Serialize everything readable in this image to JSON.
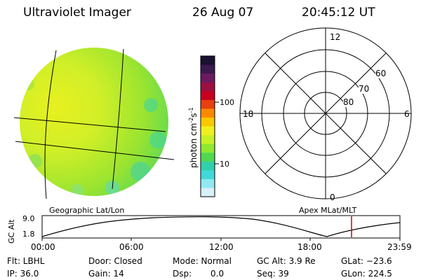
{
  "header": {
    "instrument": "Ultraviolet Imager",
    "date": "26 Aug 07",
    "time": "20:45:12 UT"
  },
  "colorbar": {
    "unit_label": "photon cm",
    "unit_sup1": "-2",
    "unit_mid": "s",
    "unit_sup2": "-1",
    "tick_100": "100",
    "tick_10": "10",
    "colors": [
      "#1a1030",
      "#3a1a50",
      "#6a1a60",
      "#9a1040",
      "#c80020",
      "#e84010",
      "#f88a00",
      "#f8c800",
      "#f0f020",
      "#c8f028",
      "#90e830",
      "#50d850",
      "#30d0a8",
      "#40d8d8",
      "#90e8f0",
      "#d8f0f8"
    ]
  },
  "polar_plot": {
    "label_top": "12",
    "label_left": "18",
    "label_right": "6",
    "label_bottom": "0",
    "ring_60": "60",
    "ring_70": "70",
    "ring_80": "80"
  },
  "orbit_panel": {
    "left_label": "Geographic Lat/Lon",
    "right_label": "Apex MLat/MLT",
    "axis_title": "GC Alt",
    "y_top": "9.0",
    "y_bottom": "1.8",
    "x_ticks": [
      "00:00",
      "06:00",
      "12:00",
      "18:00",
      "23:59"
    ],
    "marker_color": "#d00000"
  },
  "status": {
    "flt": "Flt: LBHL",
    "ip": "IP: 36.0",
    "door": "Door: Closed",
    "gain": "Gain: 14",
    "mode": "Mode: Normal",
    "dsp_label": "Dsp:",
    "dsp_value": "0.0",
    "gc_alt": "GC Alt: 3.9 Re",
    "seq": "Seq: 39",
    "glat": "GLat: −23.6",
    "glon": "GLon: 224.5"
  }
}
